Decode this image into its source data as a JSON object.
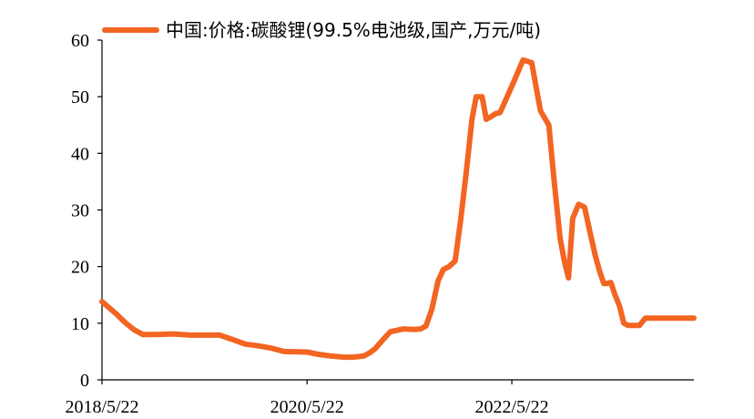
{
  "chart_data": {
    "type": "line",
    "title": "",
    "xlabel": "",
    "ylabel": "",
    "ylim": [
      0,
      60
    ],
    "yticks": [
      "0",
      "10",
      "20",
      "30",
      "40",
      "50",
      "60"
    ],
    "xticks": [
      "2018/5/22",
      "2020/5/22",
      "2022/5/22"
    ],
    "legend_position": "top",
    "grid": false,
    "series": [
      {
        "name": "中国:价格:碳酸锂(99.5%电池级,国产,万元/吨)",
        "color": "#F26522",
        "x": [
          "2018-05-22",
          "2018-06-15",
          "2018-07-15",
          "2018-08-15",
          "2018-09-15",
          "2018-10-15",
          "2018-12-01",
          "2019-02-01",
          "2019-04-01",
          "2019-06-01",
          "2019-07-15",
          "2019-09-01",
          "2019-10-15",
          "2019-12-01",
          "2020-01-15",
          "2020-03-01",
          "2020-05-22",
          "2020-07-01",
          "2020-08-15",
          "2020-10-01",
          "2020-11-01",
          "2020-11-20",
          "2020-12-10",
          "2021-01-01",
          "2021-01-20",
          "2021-02-15",
          "2021-03-15",
          "2021-05-01",
          "2021-06-10",
          "2021-07-01",
          "2021-07-20",
          "2021-08-10",
          "2021-09-01",
          "2021-09-20",
          "2021-10-10",
          "2021-11-01",
          "2021-11-20",
          "2021-12-10",
          "2021-12-31",
          "2022-01-15",
          "2022-02-05",
          "2022-02-20",
          "2022-03-10",
          "2022-03-25",
          "2022-04-10",
          "2022-05-01",
          "2022-06-01",
          "2022-07-01",
          "2022-08-01",
          "2022-09-01",
          "2022-10-01",
          "2022-10-20",
          "2022-11-10",
          "2022-11-25",
          "2022-12-10",
          "2022-12-25",
          "2023-01-15",
          "2023-02-05",
          "2023-02-25",
          "2023-03-15",
          "2023-04-01",
          "2023-04-15",
          "2023-04-25",
          "2023-05-10",
          "2023-05-25",
          "2023-06-10",
          "2023-06-25",
          "2023-07-10",
          "2023-07-31",
          "2023-08-20",
          "2023-09-10",
          "2023-10-01",
          "2023-10-20",
          "2023-11-10",
          "2023-12-01",
          "2023-12-20",
          "2024-01-10",
          "2024-01-31",
          "2024-02-20",
          "2024-03-01"
        ],
        "values": [
          13.8,
          12.8,
          11.5,
          10.0,
          8.8,
          8.0,
          8.0,
          8.1,
          7.9,
          7.9,
          7.9,
          7.1,
          6.3,
          6.0,
          5.6,
          5.0,
          4.9,
          4.5,
          4.2,
          4.0,
          4.0,
          4.1,
          4.2,
          4.8,
          5.5,
          7.0,
          8.5,
          9.0,
          8.9,
          9.0,
          9.5,
          12.5,
          17.5,
          19.5,
          20.0,
          21.0,
          28.0,
          36.5,
          46.0,
          50.0,
          50.0,
          46.0,
          46.5,
          47.0,
          47.2,
          49.5,
          53.0,
          56.5,
          56.0,
          47.5,
          45.0,
          35.0,
          25.0,
          21.0,
          18.0,
          28.5,
          31.0,
          30.5,
          26.0,
          22.0,
          19.0,
          17.0,
          17.0,
          17.2,
          15.0,
          13.0,
          10.0,
          9.6,
          9.6,
          9.6,
          10.9,
          10.9,
          10.9,
          10.9,
          10.9,
          10.9,
          10.9,
          10.9,
          10.9,
          10.9
        ]
      }
    ]
  }
}
